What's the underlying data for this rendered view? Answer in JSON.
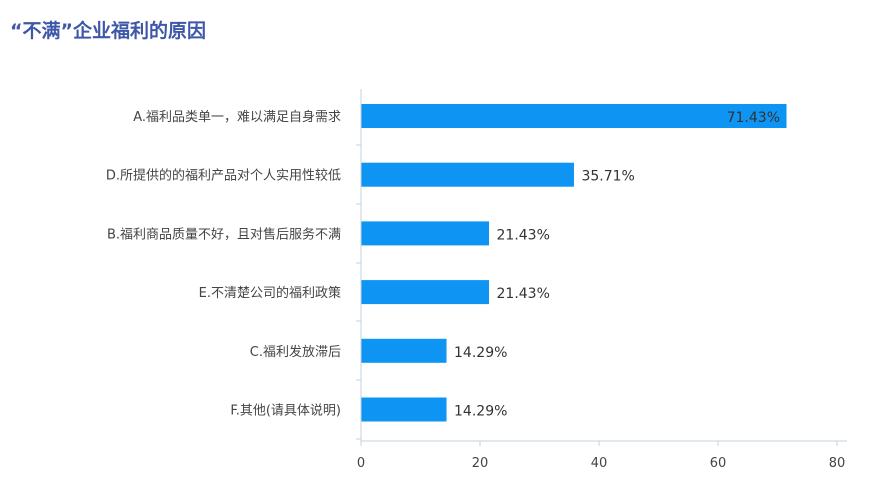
{
  "title": "“不满”企业福利的原因",
  "colors": {
    "title": "#3f57a8",
    "bar": "#0e94f2",
    "axis": "#c3d1dc"
  },
  "chart_data": {
    "type": "bar",
    "orientation": "horizontal",
    "title": "“不满”企业福利的原因",
    "categories": [
      "A.福利品类单一，难以满足自身需求",
      "D.所提供的的福利产品对个人实用性较低",
      "B.福利商品质量不好，且对售后服务不满",
      "E.不清楚公司的福利政策",
      "C.福利发放滞后",
      "F.其他(请具体说明)"
    ],
    "values": [
      71.43,
      35.71,
      21.43,
      21.43,
      14.29,
      14.29
    ],
    "value_labels": [
      "71.43%",
      "35.71%",
      "21.43%",
      "21.43%",
      "14.29%",
      "14.29%"
    ],
    "xlim": [
      0,
      80
    ],
    "xticks": [
      0,
      20,
      40,
      60,
      80
    ],
    "xtick_labels": [
      "0",
      "20",
      "40",
      "60",
      "80"
    ],
    "xlabel": "",
    "ylabel": "",
    "grid": false,
    "legend": "none"
  }
}
